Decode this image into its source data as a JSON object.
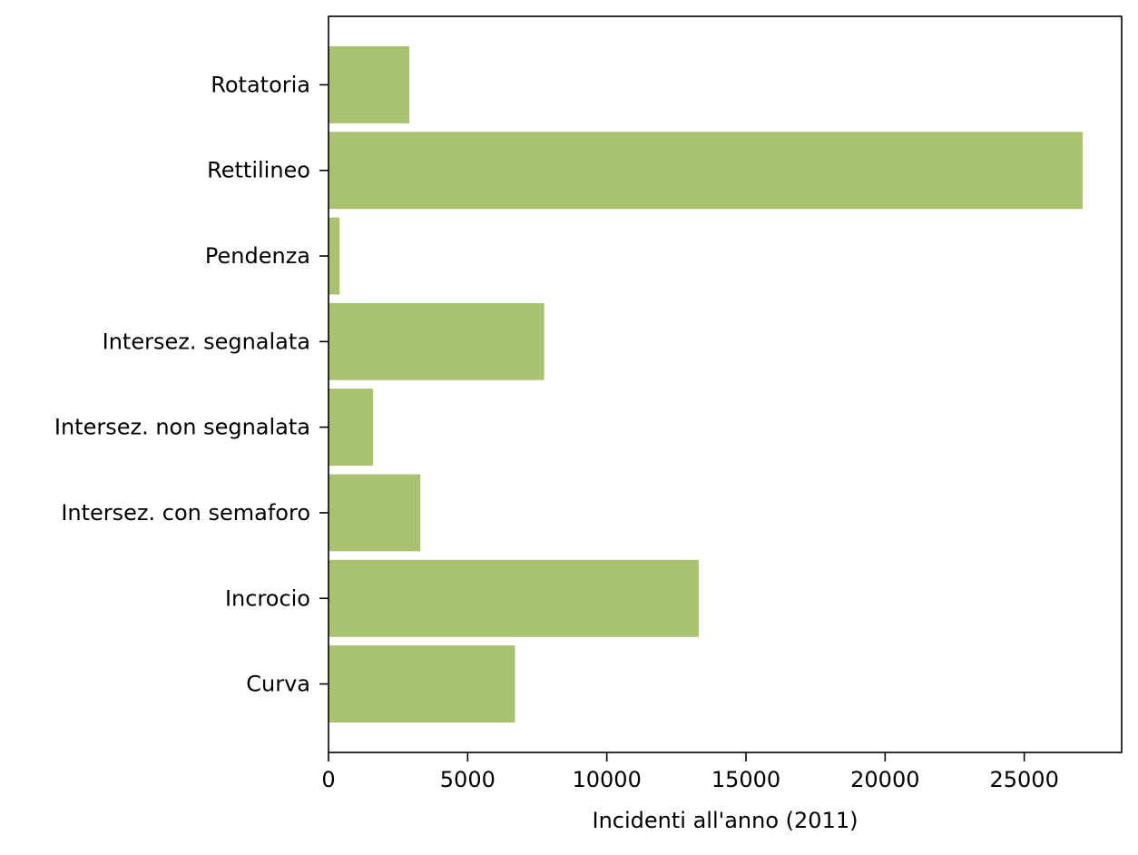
{
  "chart_data": {
    "type": "bar",
    "orientation": "horizontal",
    "title": "",
    "xlabel": "Incidenti all'anno (2011)",
    "ylabel": "",
    "xlim": [
      0,
      28500
    ],
    "xticks": [
      0,
      5000,
      10000,
      15000,
      20000,
      25000
    ],
    "grid": false,
    "bar_color": "#a9c26f",
    "categories": [
      "Curva",
      "Incrocio",
      "Intersez. con semaforo",
      "Intersez. non segnalata",
      "Intersez. segnalata",
      "Pendenza",
      "Rettilineo",
      "Rotatoria"
    ],
    "values": [
      6700,
      13300,
      3300,
      1600,
      7750,
      400,
      27100,
      2900
    ]
  }
}
